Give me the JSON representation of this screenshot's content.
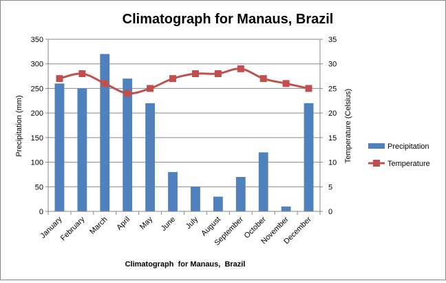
{
  "chart_data": {
    "type": "bar",
    "title": "Climatograph for Manaus, Brazil",
    "xlabel": "Climatograph  for Manaus,  Brazil",
    "ylabel": "Precipitation (mm)",
    "y2label": "Temperature  (Celsius)",
    "categories": [
      "January",
      "February",
      "March",
      "April",
      "May",
      "June",
      "July",
      "August",
      "September",
      "October",
      "November",
      "December"
    ],
    "series": [
      {
        "name": "Precipitation",
        "type": "bar",
        "axis": "left",
        "color": "#4F81BD",
        "values": [
          260,
          250,
          320,
          270,
          220,
          80,
          50,
          30,
          70,
          120,
          10,
          220
        ]
      },
      {
        "name": "Temperature",
        "type": "line",
        "axis": "right",
        "color": "#C0504D",
        "values": [
          27,
          28,
          26,
          24,
          25,
          27,
          28,
          28,
          29,
          27,
          26,
          25
        ]
      }
    ],
    "ylim": [
      0,
      350
    ],
    "y2lim": [
      0,
      35
    ],
    "yticks": [
      "0",
      "50",
      "100",
      "150",
      "200",
      "250",
      "300",
      "350"
    ],
    "y2ticks": [
      "0",
      "5",
      "10",
      "15",
      "20",
      "25",
      "30",
      "35"
    ],
    "grid": true,
    "legend": "right"
  }
}
